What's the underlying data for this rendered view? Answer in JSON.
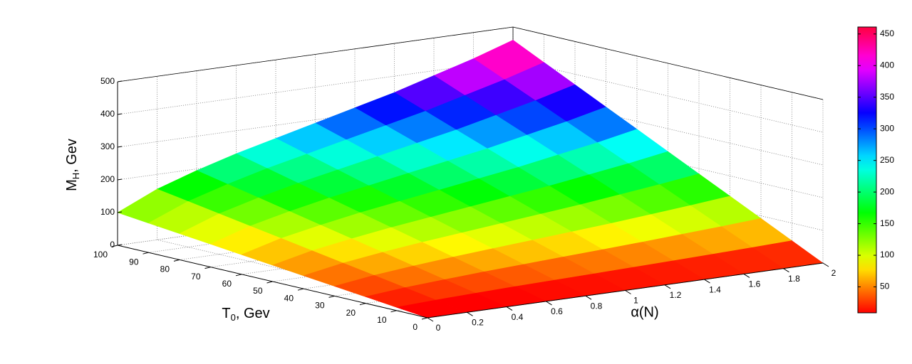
{
  "chart_data": {
    "type": "surface",
    "xlabel": "α(N)",
    "ylabel": {
      "base": "T",
      "sub": "0",
      "tail": ", Gev"
    },
    "zlabel": {
      "base": "M",
      "sub": "H",
      "tail": ", Gev"
    },
    "x": [
      0,
      0.2,
      0.4,
      0.6,
      0.8,
      1,
      1.2,
      1.4,
      1.6,
      1.8,
      2
    ],
    "y": [
      0,
      10,
      20,
      30,
      40,
      50,
      60,
      70,
      80,
      90,
      100
    ],
    "z": [
      [
        0,
        0,
        0,
        0,
        0,
        0,
        0,
        0,
        0,
        0,
        0
      ],
      [
        10,
        15.5,
        19.5,
        23,
        26,
        29,
        32,
        35,
        38.5,
        42,
        46
      ],
      [
        20,
        31,
        39,
        46,
        52,
        58,
        64,
        70,
        77,
        84,
        92
      ],
      [
        30,
        46.5,
        58.5,
        69,
        78,
        87,
        96,
        105,
        115.5,
        126,
        138
      ],
      [
        40,
        62,
        78,
        92,
        104,
        116,
        128,
        140,
        154,
        168,
        184
      ],
      [
        50,
        77.5,
        97.5,
        115,
        130,
        145,
        160,
        175,
        192.5,
        210,
        230
      ],
      [
        60,
        93,
        117,
        138,
        156,
        174,
        192,
        210,
        231,
        252,
        276
      ],
      [
        70,
        108.5,
        136.5,
        161,
        182,
        203,
        224,
        245,
        269.5,
        294,
        322
      ],
      [
        80,
        124,
        156,
        184,
        208,
        232,
        256,
        280,
        308,
        336,
        368
      ],
      [
        90,
        139.5,
        175.5,
        207,
        234,
        261,
        288,
        315,
        346.5,
        378,
        414
      ],
      [
        100,
        155,
        195,
        230,
        260,
        290,
        320,
        350,
        385,
        420,
        460
      ]
    ],
    "xlim": [
      0,
      2
    ],
    "xticks": [
      0,
      0.2,
      0.4,
      0.6,
      0.8,
      1,
      1.2,
      1.4,
      1.6,
      1.8,
      2
    ],
    "ylim": [
      0,
      100
    ],
    "yticks": [
      0,
      10,
      20,
      30,
      40,
      50,
      60,
      70,
      80,
      90,
      100
    ],
    "zlim": [
      0,
      500
    ],
    "zticks": [
      0,
      100,
      200,
      300,
      400,
      500
    ],
    "colormap": "hsv",
    "clim": [
      9,
      461
    ],
    "cticks": [
      50,
      100,
      150,
      200,
      250,
      300,
      350,
      400,
      450
    ],
    "grid": true
  }
}
